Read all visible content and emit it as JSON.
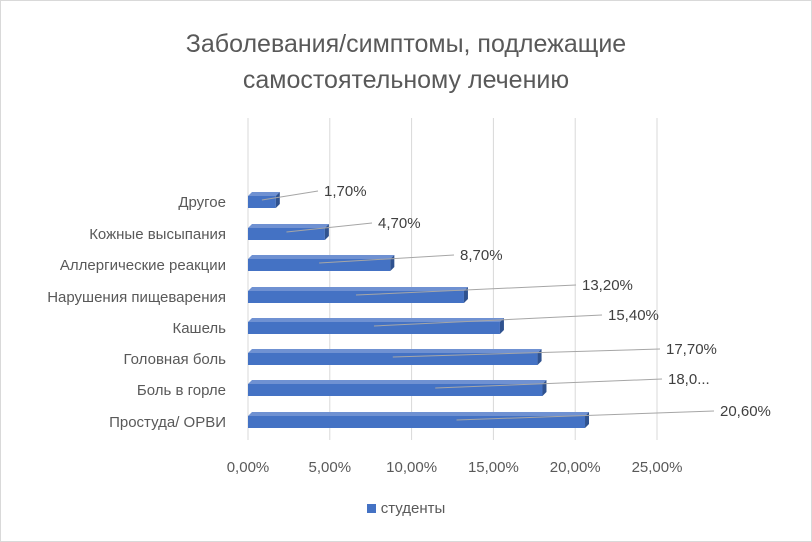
{
  "chart_data": {
    "type": "bar",
    "orientation": "horizontal",
    "title_lines": [
      "Заболевания/симптомы, подлежащие",
      "самостоятельному лечению"
    ],
    "categories": [
      "Простуда/ ОРВИ",
      "Боль в горле",
      "Головная боль",
      "Кашель",
      "Нарушения пищеварения",
      "Аллергические реакции",
      "Кожные высыпания",
      "Другое"
    ],
    "values": [
      20.6,
      18.0,
      17.7,
      15.4,
      13.2,
      8.7,
      4.7,
      1.7
    ],
    "data_labels": [
      "20,60%",
      "18,0...",
      "17,70%",
      "15,40%",
      "13,20%",
      "8,70%",
      "4,70%",
      "1,70%"
    ],
    "xlim": [
      0,
      25
    ],
    "xticks": [
      0,
      5,
      10,
      15,
      20,
      25
    ],
    "xtick_labels": [
      "0,00%",
      "5,00%",
      "10,00%",
      "15,00%",
      "20,00%",
      "25,00%"
    ],
    "grid": true,
    "legend_position": "bottom",
    "series": [
      {
        "name": "студенты",
        "color": "#4472C4"
      }
    ]
  }
}
